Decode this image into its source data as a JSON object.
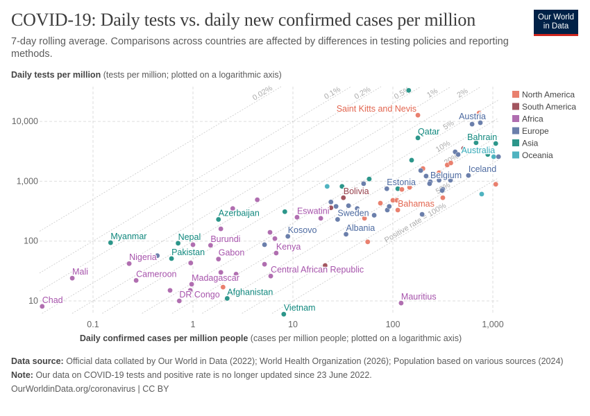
{
  "header": {
    "title": "COVID-19: Daily tests vs. daily new confirmed cases per million",
    "subtitle": "7-day rolling average. Comparisons across countries are affected by differences in testing policies and reporting methods.",
    "logo_line1": "Our World",
    "logo_line2": "in Data"
  },
  "footer": {
    "source_label": "Data source:",
    "source_text": "Official data collated by Our World in Data (2022); World Health Organization (2026); Population based on various sources (2024)",
    "note_label": "Note:",
    "note_text": "Our data on COVID-19 tests and positive rate is no longer updated since 23 June 2022.",
    "url": "OurWorldinData.org/coronavirus | CC BY"
  },
  "chart_data": {
    "type": "scatter",
    "ylabel_bold": "Daily tests per million",
    "ylabel_rest": "(tests per million; plotted on a logarithmic axis)",
    "xlabel_bold": "Daily confirmed cases per million people",
    "xlabel_rest": "(cases per million people; plotted on a logarithmic axis)",
    "x_scale": "log",
    "y_scale": "log",
    "xlim": [
      0.029,
      1150
    ],
    "ylim": [
      6.2,
      38000
    ],
    "x_ticks": [
      {
        "v": 0.1,
        "label": "0.1"
      },
      {
        "v": 1,
        "label": "1"
      },
      {
        "v": 10,
        "label": "10"
      },
      {
        "v": 100,
        "label": "100"
      },
      {
        "v": 1000,
        "label": "1,000"
      }
    ],
    "y_ticks": [
      {
        "v": 10,
        "label": "10"
      },
      {
        "v": 100,
        "label": "100"
      },
      {
        "v": 1000,
        "label": "1,000"
      },
      {
        "v": 10000,
        "label": "10,000"
      }
    ],
    "grid": true,
    "legend_position": "right",
    "legend": [
      "North America",
      "South America",
      "Africa",
      "Europe",
      "Asia",
      "Oceania"
    ],
    "colors": {
      "North America": "#e9806e",
      "South America": "#a2555f",
      "Africa": "#b06eb0",
      "Europe": "#6b7fab",
      "Asia": "#2c968a",
      "Oceania": "#4fb3c0"
    },
    "label_colors": {
      "North America": "#e2654f",
      "South America": "#96404b",
      "Africa": "#a653ab",
      "Europe": "#4d6aa0",
      "Asia": "#0f877d",
      "Oceania": "#35a9b8"
    },
    "positive_rate_lines": [
      {
        "rate": 0.0002,
        "label": "0.02%"
      },
      {
        "rate": 0.001,
        "label": "0.1%"
      },
      {
        "rate": 0.002,
        "label": "0.2%"
      },
      {
        "rate": 0.005,
        "label": "0.5%"
      },
      {
        "rate": 0.01,
        "label": "1%"
      },
      {
        "rate": 0.02,
        "label": "2%"
      },
      {
        "rate": 0.05,
        "label": "5%"
      },
      {
        "rate": 0.1,
        "label": "10%"
      },
      {
        "rate": 0.2,
        "label": "20%"
      },
      {
        "rate": 0.5,
        "label": "50%"
      },
      {
        "rate": 1,
        "label": "Positive rate = 100%"
      }
    ],
    "points": [
      {
        "label": "Chad",
        "continent": "Africa",
        "x": 0.031,
        "y": 8.1
      },
      {
        "label": "Mali",
        "continent": "Africa",
        "x": 0.062,
        "y": 24
      },
      {
        "label": "Myanmar",
        "continent": "Asia",
        "x": 0.15,
        "y": 94
      },
      {
        "label": "Nigeria",
        "continent": "Africa",
        "x": 0.23,
        "y": 42
      },
      {
        "label": "",
        "continent": "Europe",
        "x": 0.44,
        "y": 57
      },
      {
        "label": "Cameroon",
        "continent": "Africa",
        "x": 0.27,
        "y": 22
      },
      {
        "label": "Nepal",
        "continent": "Asia",
        "x": 0.71,
        "y": 92
      },
      {
        "label": "",
        "continent": "Africa",
        "x": 1.0,
        "y": 87
      },
      {
        "label": "Pakistan",
        "continent": "Asia",
        "x": 0.61,
        "y": 51
      },
      {
        "label": "",
        "continent": "Africa",
        "x": 0.95,
        "y": 43
      },
      {
        "label": "",
        "continent": "Africa",
        "x": 0.59,
        "y": 15
      },
      {
        "label": "Madagascar",
        "continent": "Africa",
        "x": 0.97,
        "y": 19
      },
      {
        "label": "",
        "continent": "Africa",
        "x": 0.94,
        "y": 15
      },
      {
        "label": "DR Congo",
        "continent": "Africa",
        "x": 0.73,
        "y": 10
      },
      {
        "label": "Burundi",
        "continent": "Africa",
        "x": 1.5,
        "y": 85
      },
      {
        "label": "Gabon",
        "continent": "Africa",
        "x": 1.8,
        "y": 50
      },
      {
        "label": "",
        "continent": "Africa",
        "x": 1.9,
        "y": 30
      },
      {
        "label": "",
        "continent": "Africa",
        "x": 2.7,
        "y": 28
      },
      {
        "label": "",
        "continent": "North America",
        "x": 2.0,
        "y": 17
      },
      {
        "label": "Afghanistan",
        "continent": "Asia",
        "x": 2.2,
        "y": 11
      },
      {
        "label": "Azerbaijan",
        "continent": "Asia",
        "x": 1.8,
        "y": 230
      },
      {
        "label": "",
        "continent": "Africa",
        "x": 1.9,
        "y": 160
      },
      {
        "label": "",
        "continent": "Africa",
        "x": 2.5,
        "y": 350
      },
      {
        "label": "",
        "continent": "Africa",
        "x": 4.4,
        "y": 490
      },
      {
        "label": "",
        "continent": "Asia",
        "x": 8.3,
        "y": 310
      },
      {
        "label": "Eswatini",
        "continent": "Africa",
        "x": 11,
        "y": 250
      },
      {
        "label": "Kosovo",
        "continent": "Europe",
        "x": 8.9,
        "y": 120
      },
      {
        "label": "",
        "continent": "Africa",
        "x": 5.9,
        "y": 140
      },
      {
        "label": "",
        "continent": "Africa",
        "x": 6.6,
        "y": 110
      },
      {
        "label": "",
        "continent": "Europe",
        "x": 5.2,
        "y": 87
      },
      {
        "label": "Kenya",
        "continent": "Africa",
        "x": 6.8,
        "y": 63
      },
      {
        "label": "",
        "continent": "Africa",
        "x": 5.2,
        "y": 41
      },
      {
        "label": "Central African Republic",
        "continent": "Africa",
        "x": 6.0,
        "y": 26
      },
      {
        "label": "Vietnam",
        "continent": "Asia",
        "x": 8.1,
        "y": 6.0
      },
      {
        "label": "Mauritius",
        "continent": "Africa",
        "x": 121,
        "y": 9.2
      },
      {
        "label": "Albania",
        "continent": "Europe",
        "x": 34,
        "y": 130
      },
      {
        "label": "",
        "continent": "South America",
        "x": 21,
        "y": 39
      },
      {
        "label": "",
        "continent": "Africa",
        "x": 19,
        "y": 240
      },
      {
        "label": "",
        "continent": "Oceania",
        "x": 22,
        "y": 820
      },
      {
        "label": "",
        "continent": "Asia",
        "x": 31,
        "y": 820
      },
      {
        "label": "",
        "continent": "Europe",
        "x": 51,
        "y": 910
      },
      {
        "label": "",
        "continent": "Asia",
        "x": 58,
        "y": 1090
      },
      {
        "label": "",
        "continent": "Europe",
        "x": 24,
        "y": 450
      },
      {
        "label": "",
        "continent": "Europe",
        "x": 27,
        "y": 380
      },
      {
        "label": "",
        "continent": "South America",
        "x": 24,
        "y": 360
      },
      {
        "label": "Bolivia",
        "continent": "South America",
        "x": 32,
        "y": 530
      },
      {
        "label": "",
        "continent": "Europe",
        "x": 36,
        "y": 390
      },
      {
        "label": "",
        "continent": "Europe",
        "x": 44,
        "y": 350
      },
      {
        "label": "Sweden",
        "continent": "Europe",
        "x": 28,
        "y": 230
      },
      {
        "label": "",
        "continent": "North America",
        "x": 52,
        "y": 240
      },
      {
        "label": "",
        "continent": "Europe",
        "x": 65,
        "y": 270
      },
      {
        "label": "",
        "continent": "North America",
        "x": 56,
        "y": 97
      },
      {
        "label": "",
        "continent": "North America",
        "x": 75,
        "y": 430
      },
      {
        "label": "",
        "continent": "Europe",
        "x": 88,
        "y": 330
      },
      {
        "label": "",
        "continent": "Europe",
        "x": 92,
        "y": 380
      },
      {
        "label": "",
        "continent": "North America",
        "x": 100,
        "y": 480
      },
      {
        "label": "",
        "continent": "North America",
        "x": 110,
        "y": 480
      },
      {
        "label": "Bahamas",
        "continent": "North America",
        "x": 112,
        "y": 330
      },
      {
        "label": "Estonia",
        "continent": "Europe",
        "x": 87,
        "y": 750
      },
      {
        "label": "",
        "continent": "Asia",
        "x": 112,
        "y": 750
      },
      {
        "label": "",
        "continent": "North America",
        "x": 123,
        "y": 730
      },
      {
        "label": "",
        "continent": "North America",
        "x": 147,
        "y": 790
      },
      {
        "label": "",
        "continent": "Asia",
        "x": 144,
        "y": 33000
      },
      {
        "label": "Saint Kitts and Nevis",
        "continent": "North America",
        "x": 178,
        "y": 12700
      },
      {
        "label": "",
        "continent": "North America",
        "x": 730,
        "y": 13800
      },
      {
        "label": "",
        "continent": "Europe",
        "x": 620,
        "y": 9000
      },
      {
        "label": "Austria",
        "continent": "Europe",
        "x": 750,
        "y": 9500
      },
      {
        "label": "Qatar",
        "continent": "Asia",
        "x": 178,
        "y": 5300
      },
      {
        "label": "",
        "continent": "Asia",
        "x": 680,
        "y": 4400
      },
      {
        "label": "Bahrain",
        "continent": "Asia",
        "x": 1070,
        "y": 4270
      },
      {
        "label": "",
        "continent": "Europe",
        "x": 420,
        "y": 3100
      },
      {
        "label": "",
        "continent": "Europe",
        "x": 450,
        "y": 2800
      },
      {
        "label": "",
        "continent": "South America",
        "x": 510,
        "y": 3540
      },
      {
        "label": "",
        "continent": "Asia",
        "x": 890,
        "y": 2800
      },
      {
        "label": "Australia",
        "continent": "Oceania",
        "x": 1020,
        "y": 2570
      },
      {
        "label": "",
        "continent": "Europe",
        "x": 1140,
        "y": 2570
      },
      {
        "label": "",
        "continent": "Asia",
        "x": 154,
        "y": 2250
      },
      {
        "label": "",
        "continent": "North America",
        "x": 200,
        "y": 1630
      },
      {
        "label": "",
        "continent": "Europe",
        "x": 190,
        "y": 1510
      },
      {
        "label": "",
        "continent": "North America",
        "x": 350,
        "y": 1870
      },
      {
        "label": "",
        "continent": "North America",
        "x": 380,
        "y": 2020
      },
      {
        "label": "",
        "continent": "North America",
        "x": 290,
        "y": 1390
      },
      {
        "label": "",
        "continent": "Europe",
        "x": 215,
        "y": 1220
      },
      {
        "label": "Belgium",
        "continent": "Europe",
        "x": 237,
        "y": 980
      },
      {
        "label": "",
        "continent": "Europe",
        "x": 233,
        "y": 910
      },
      {
        "label": "",
        "continent": "Europe",
        "x": 290,
        "y": 1040
      },
      {
        "label": "",
        "continent": "Europe",
        "x": 377,
        "y": 1040
      },
      {
        "label": "Iceland",
        "continent": "Europe",
        "x": 570,
        "y": 1250
      },
      {
        "label": "",
        "continent": "North America",
        "x": 1070,
        "y": 890
      },
      {
        "label": "",
        "continent": "Europe",
        "x": 316,
        "y": 730
      },
      {
        "label": "",
        "continent": "Europe",
        "x": 311,
        "y": 700
      },
      {
        "label": "",
        "continent": "North America",
        "x": 316,
        "y": 530
      },
      {
        "label": "",
        "continent": "Oceania",
        "x": 774,
        "y": 610
      },
      {
        "label": "",
        "continent": "Europe",
        "x": 196,
        "y": 280
      }
    ]
  }
}
